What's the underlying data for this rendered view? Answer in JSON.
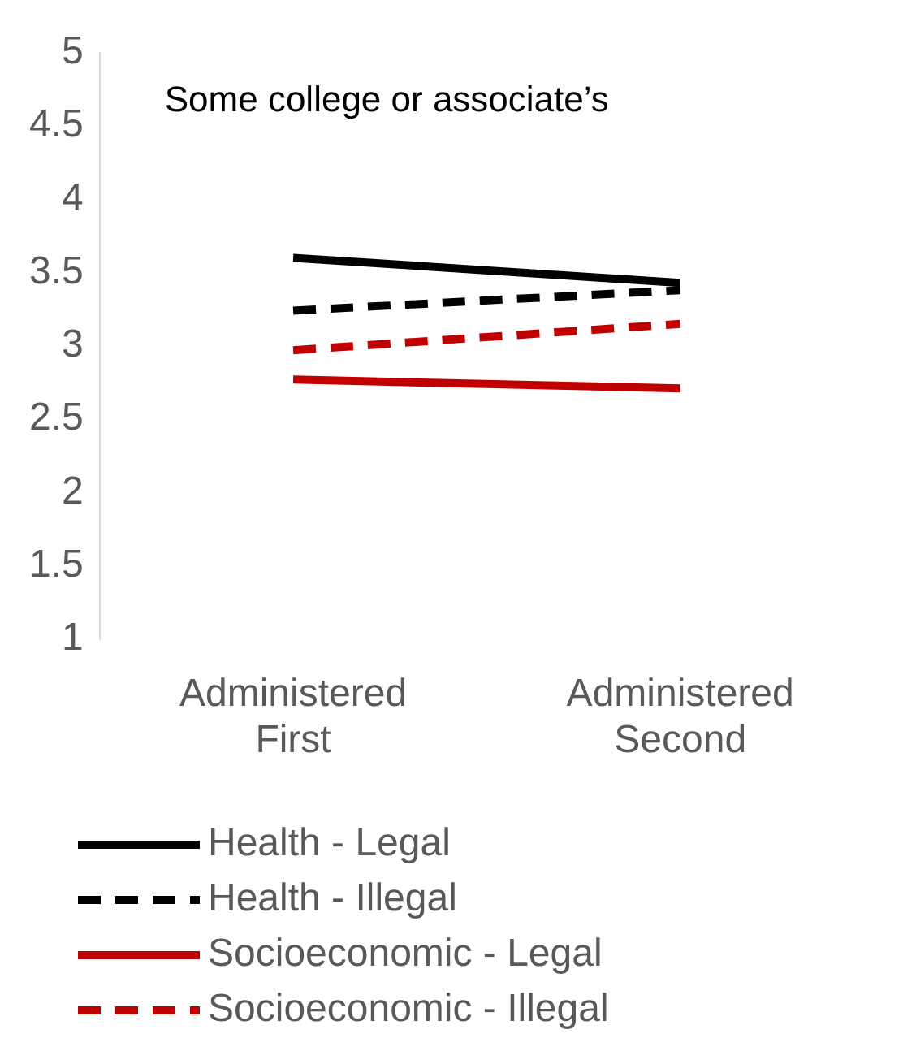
{
  "chart_data": {
    "type": "line",
    "title": "Some college or associate’s",
    "categories": [
      "Administered First",
      "Administered Second"
    ],
    "series": [
      {
        "name": "Health - Legal",
        "color": "#000000",
        "values": [
          3.6,
          3.43
        ],
        "line_style": "solid"
      },
      {
        "name": "Health - Illegal",
        "color": "#000000",
        "values": [
          3.24,
          3.38
        ],
        "line_style": "dashed"
      },
      {
        "name": "Socioeconomic - Legal",
        "color": "#c00000",
        "values": [
          2.77,
          2.71
        ],
        "line_style": "solid"
      },
      {
        "name": "Socioeconomic - Illegal",
        "color": "#c00000",
        "values": [
          2.97,
          3.15
        ],
        "line_style": "dashed"
      }
    ],
    "ylim": [
      1,
      5
    ],
    "yticks": [
      1,
      1.5,
      2,
      2.5,
      3,
      3.5,
      4,
      4.5,
      5
    ],
    "grid": false,
    "legend": "bottom",
    "marker": "none"
  }
}
